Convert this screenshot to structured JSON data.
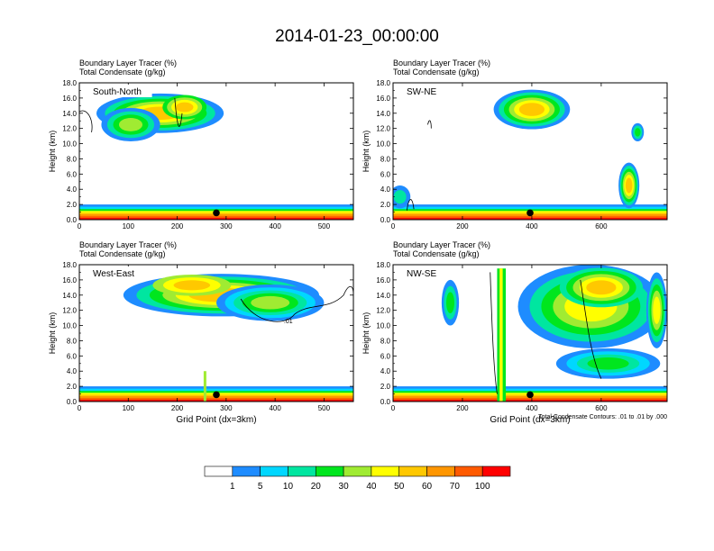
{
  "title": "2014-01-23_00:00:00",
  "chart_data": [
    {
      "type": "heatmap",
      "subtitle_lines": [
        "Boundary Layer Tracer   (%)",
        "Total Condensate   (g/kg)"
      ],
      "panel_label": "South-North",
      "ylabel": "Height (km)",
      "xlabel": "",
      "xlim": [
        0,
        560
      ],
      "ylim": [
        0,
        18
      ],
      "xticks": [
        0,
        100,
        200,
        300,
        400,
        500
      ],
      "yticks": [
        "0.0",
        "2.0",
        "4.0",
        "6.0",
        "8.0",
        "10.0",
        "12.0",
        "14.0",
        "16.0",
        "18.0"
      ],
      "marker_x": 280,
      "extra_note": ""
    },
    {
      "type": "heatmap",
      "subtitle_lines": [
        "Boundary Layer Tracer   (%)",
        "Total Condensate   (g/kg)"
      ],
      "panel_label": "SW-NE",
      "ylabel": "Height (km)",
      "xlabel": "",
      "xlim": [
        0,
        790
      ],
      "ylim": [
        0,
        18
      ],
      "xticks": [
        0,
        200,
        400,
        600
      ],
      "yticks": [
        "0.0",
        "2.0",
        "4.0",
        "6.0",
        "8.0",
        "10.0",
        "12.0",
        "14.0",
        "16.0",
        "18.0"
      ],
      "marker_x": 395,
      "extra_note": ""
    },
    {
      "type": "heatmap",
      "subtitle_lines": [
        "Boundary Layer Tracer   (%)",
        "Total Condensate   (g/kg)"
      ],
      "panel_label": "West-East",
      "ylabel": "Height (km)",
      "xlabel": "Grid Point (dx=3km)",
      "xlim": [
        0,
        560
      ],
      "ylim": [
        0,
        18
      ],
      "xticks": [
        0,
        100,
        200,
        300,
        400,
        500
      ],
      "yticks": [
        "0.0",
        "2.0",
        "4.0",
        "6.0",
        "8.0",
        "10.0",
        "12.0",
        "14.0",
        "16.0",
        "18.0"
      ],
      "marker_x": 280,
      "extra_note": ""
    },
    {
      "type": "heatmap",
      "subtitle_lines": [
        "Boundary Layer Tracer   (%)",
        "Total Condensate   (g/kg)"
      ],
      "panel_label": "NW-SE",
      "ylabel": "Height (km)",
      "xlabel": "Grid Point (dx=3km)",
      "xlim": [
        0,
        790
      ],
      "ylim": [
        0,
        18
      ],
      "xticks": [
        0,
        200,
        400,
        600
      ],
      "yticks": [
        "0.0",
        "2.0",
        "4.0",
        "6.0",
        "8.0",
        "10.0",
        "12.0",
        "14.0",
        "16.0",
        "18.0"
      ],
      "marker_x": 395,
      "extra_note": "Total Condensate Contours: .01 to .01 by .000"
    }
  ],
  "colorbar": {
    "colors": [
      "#ffffff",
      "#1e8cff",
      "#00d7ff",
      "#00e6a0",
      "#00e61e",
      "#a0eb32",
      "#ffff00",
      "#ffc800",
      "#ff9600",
      "#ff5a00",
      "#ff0000"
    ],
    "labels": [
      "1",
      "5",
      "10",
      "20",
      "30",
      "40",
      "50",
      "60",
      "70",
      "100"
    ]
  }
}
